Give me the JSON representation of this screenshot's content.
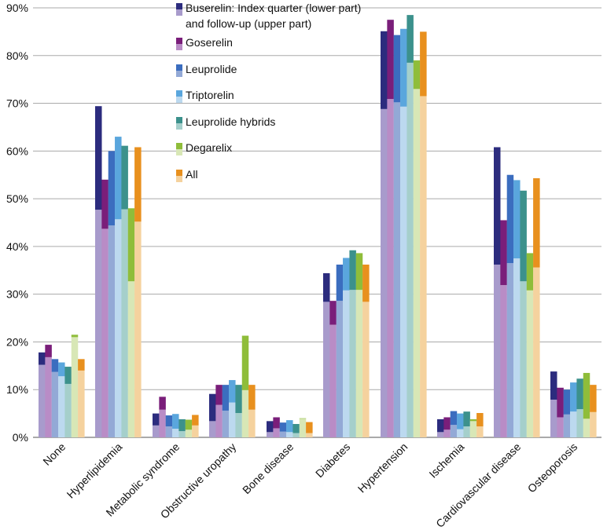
{
  "chart_data": {
    "type": "bar",
    "title": "",
    "xlabel": "",
    "ylabel": "",
    "ylim": [
      0,
      90
    ],
    "y_ticks": [
      "0%",
      "10%",
      "20%",
      "30%",
      "40%",
      "50%",
      "60%",
      "70%",
      "80%",
      "90%"
    ],
    "grid": true,
    "legend_position": "top-center",
    "categories": [
      "None",
      "Hyperlipidemia",
      "Metabolic syndrome",
      "Obstructive uropathy",
      "Bone disease",
      "Diabetes",
      "Hypertension",
      "Ischemia",
      "Cardiovascular disease",
      "Osteoporosis"
    ],
    "series": [
      {
        "name": "Buserelin: Index quarter (lower part) and follow-up (upper part)",
        "legend_lines": [
          "Buserelin: Index quarter (lower part)",
          "and follow-up (upper part)"
        ],
        "color_followup": "#2c2c7e",
        "color_index": "#a89bcc",
        "index_quarter": [
          15.2,
          47.7,
          2.5,
          3.4,
          1.1,
          28.4,
          68.8,
          1.1,
          36.2,
          7.9
        ],
        "follow_up": [
          17.8,
          69.4,
          5.0,
          9.1,
          3.4,
          34.4,
          85.1,
          3.8,
          60.8,
          13.8
        ]
      },
      {
        "name": "Goserelin",
        "legend_lines": [
          "Goserelin"
        ],
        "color_followup": "#7a1e7a",
        "color_index": "#b98cc6",
        "index_quarter": [
          16.8,
          43.7,
          5.8,
          6.8,
          1.9,
          23.6,
          70.9,
          1.6,
          31.9,
          4.2
        ],
        "follow_up": [
          19.4,
          54.0,
          8.5,
          11.0,
          4.2,
          28.6,
          87.5,
          4.2,
          45.5,
          10.4
        ]
      },
      {
        "name": "Leuprolide",
        "legend_lines": [
          "Leuprolide"
        ],
        "color_followup": "#3b6dbf",
        "color_index": "#93a9d6",
        "index_quarter": [
          13.7,
          44.4,
          2.3,
          5.6,
          1.2,
          28.6,
          70.2,
          2.6,
          36.5,
          4.8
        ],
        "follow_up": [
          16.4,
          60.0,
          4.6,
          11.0,
          3.1,
          36.2,
          84.3,
          5.5,
          55.0,
          10.0
        ]
      },
      {
        "name": "Triptorelin",
        "legend_lines": [
          "Triptorelin"
        ],
        "color_followup": "#5aa6dd",
        "color_index": "#bcd9ef",
        "index_quarter": [
          12.8,
          45.7,
          1.8,
          7.3,
          1.1,
          30.8,
          69.3,
          1.7,
          37.5,
          5.4
        ],
        "follow_up": [
          15.7,
          63.0,
          4.9,
          12.0,
          3.6,
          37.6,
          85.6,
          5.0,
          53.9,
          11.5
        ]
      },
      {
        "name": "Leuprolide hybrids",
        "legend_lines": [
          "Leuprolide hybrids"
        ],
        "color_followup": "#3c918c",
        "color_index": "#a5cfcb",
        "index_quarter": [
          11.2,
          47.8,
          1.3,
          5.1,
          0.9,
          30.9,
          78.5,
          2.3,
          32.7,
          5.9
        ],
        "follow_up": [
          14.8,
          61.1,
          3.8,
          11.0,
          2.8,
          39.2,
          88.5,
          5.4,
          51.7,
          12.3
        ]
      },
      {
        "name": "Degarelix",
        "legend_lines": [
          "Degarelix"
        ],
        "color_followup": "#8fbd3a",
        "color_index": "#d8e7b6",
        "index_quarter": [
          21.0,
          32.7,
          1.6,
          9.9,
          3.9,
          30.9,
          73.0,
          3.4,
          30.8,
          3.9
        ],
        "follow_up": [
          21.5,
          48.0,
          3.7,
          21.3,
          4.0,
          38.6,
          79.0,
          3.8,
          38.6,
          13.5
        ]
      },
      {
        "name": "All",
        "legend_lines": [
          "All"
        ],
        "color_followup": "#e8901e",
        "color_index": "#f5d29e",
        "index_quarter": [
          14.0,
          45.2,
          2.5,
          5.8,
          0.9,
          28.4,
          71.5,
          2.3,
          35.6,
          5.3
        ],
        "follow_up": [
          16.4,
          60.8,
          4.7,
          11.0,
          3.2,
          36.2,
          85.0,
          5.1,
          54.3,
          11.0
        ]
      }
    ]
  }
}
